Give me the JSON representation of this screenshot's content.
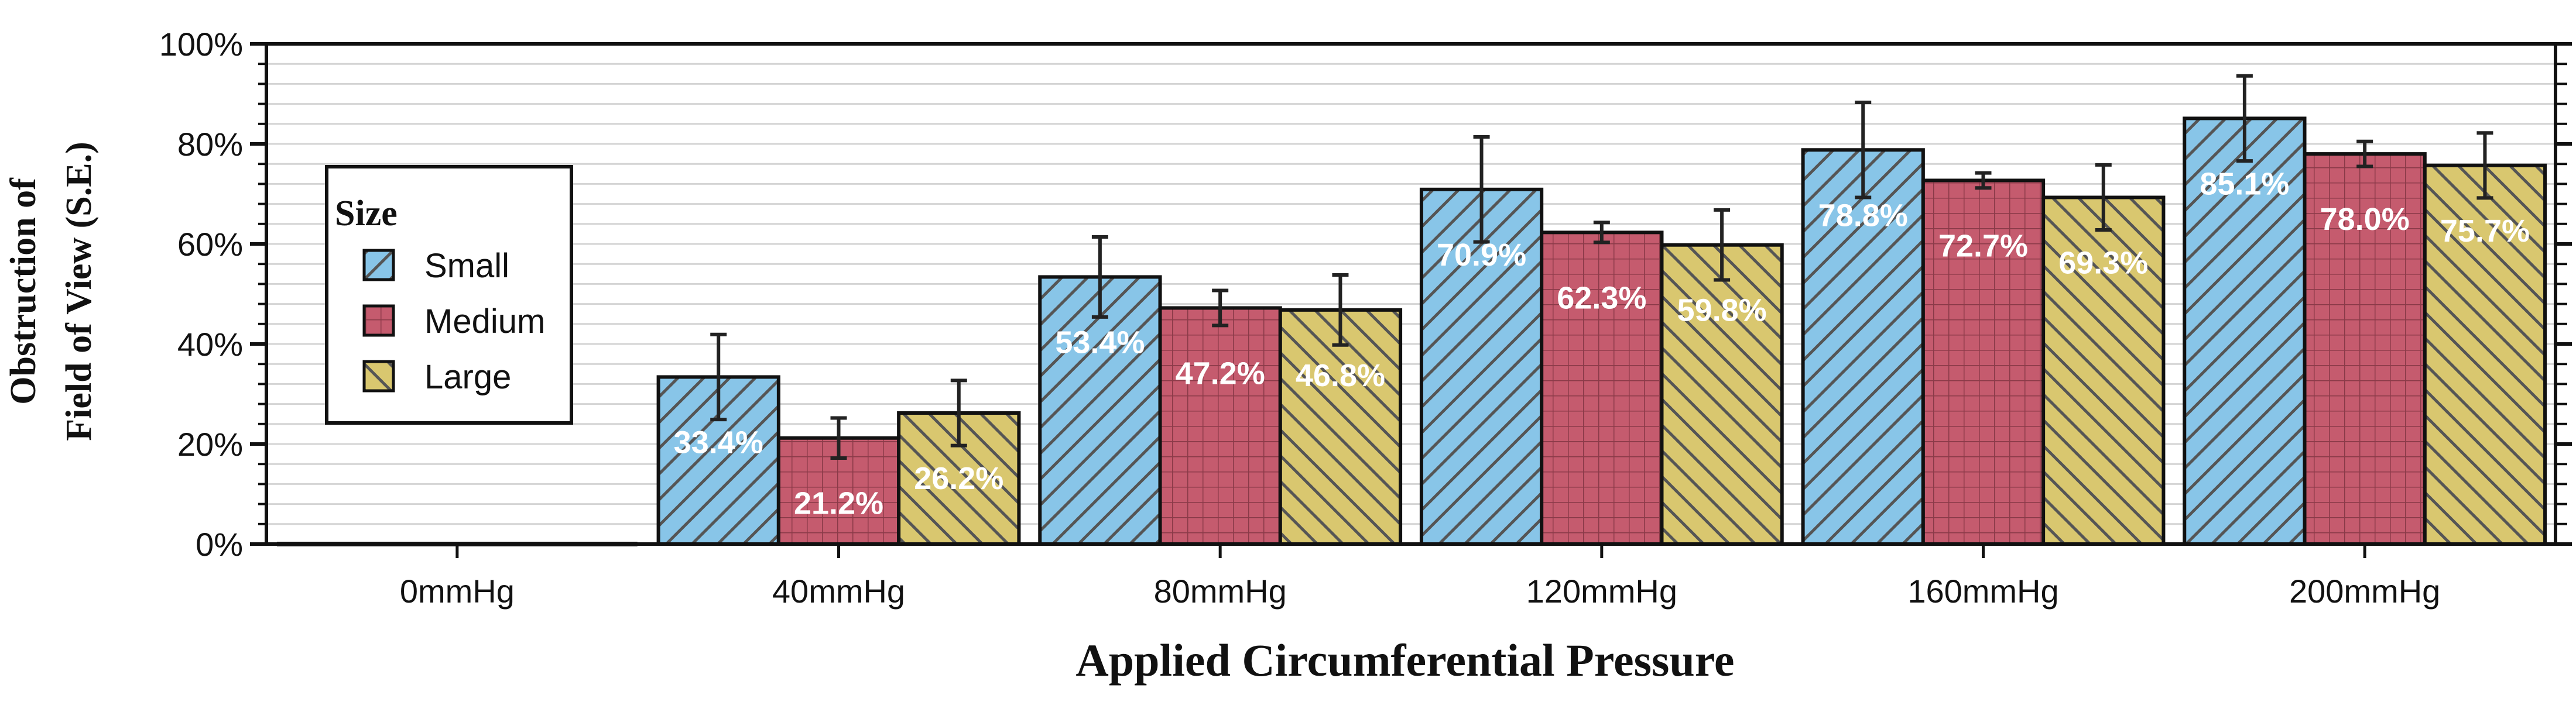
{
  "chart_data": {
    "type": "bar",
    "title": "",
    "xlabel": "Applied Circumferential Pressure",
    "ylabel_lines": [
      "Obstruction of",
      "Field of View (S.E.)"
    ],
    "categories": [
      "0mmHg",
      "40mmHg",
      "80mmHg",
      "120mmHg",
      "160mmHg",
      "200mmHg"
    ],
    "ylim": [
      0,
      100
    ],
    "yticks": [
      0,
      20,
      40,
      60,
      80,
      100
    ],
    "ytick_labels": [
      "0%",
      "20%",
      "40%",
      "60%",
      "80%",
      "100%"
    ],
    "grid": true,
    "legend": {
      "title": "Size",
      "placement": "upper-left"
    },
    "series": [
      {
        "name": "Small",
        "color": "#88c5e8",
        "hatch": "diagonal",
        "values": [
          0,
          33.4,
          53.4,
          70.9,
          78.8,
          85.1
        ],
        "errors": [
          0,
          8.5,
          8.0,
          10.5,
          9.5,
          8.5
        ],
        "labels": [
          "",
          "33.4%",
          "53.4%",
          "70.9%",
          "78.8%",
          "85.1%"
        ]
      },
      {
        "name": "Medium",
        "color": "#c55b6e",
        "hatch": "grid",
        "values": [
          0,
          21.2,
          47.2,
          62.3,
          72.7,
          78.0
        ],
        "errors": [
          0,
          4.0,
          3.5,
          2.0,
          1.5,
          2.5
        ],
        "labels": [
          "",
          "21.2%",
          "47.2%",
          "62.3%",
          "72.7%",
          "78.0%"
        ]
      },
      {
        "name": "Large",
        "color": "#d9c76f",
        "hatch": "backdiagonal",
        "values": [
          0,
          26.2,
          46.8,
          59.8,
          69.3,
          75.7
        ],
        "errors": [
          0,
          6.5,
          7.0,
          7.0,
          6.5,
          6.5
        ],
        "labels": [
          "",
          "26.2%",
          "46.8%",
          "59.8%",
          "69.3%",
          "75.7%"
        ]
      }
    ]
  }
}
